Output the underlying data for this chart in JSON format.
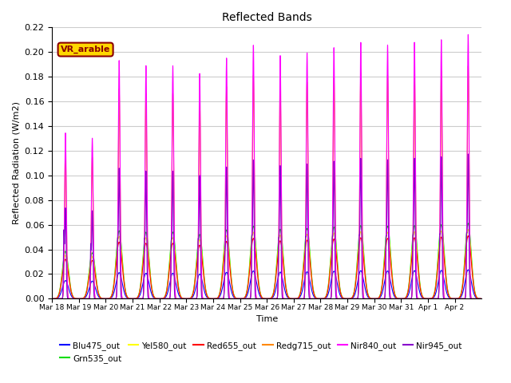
{
  "title": "Reflected Bands",
  "xlabel": "Time",
  "ylabel": "Reflected Radiation (W/m2)",
  "annotation": "VR_arable",
  "annotation_color": "#8B0000",
  "annotation_bg": "#FFD700",
  "ylim": [
    0.0,
    0.22
  ],
  "series": [
    {
      "label": "Blu475_out",
      "color": "#0000FF",
      "peak_scale": 0.023
    },
    {
      "label": "Grn535_out",
      "color": "#00DD00",
      "peak_scale": 0.06
    },
    {
      "label": "Yel580_out",
      "color": "#FFFF00",
      "peak_scale": 0.055
    },
    {
      "label": "Red655_out",
      "color": "#FF0000",
      "peak_scale": 0.05
    },
    {
      "label": "Redg715_out",
      "color": "#FF8800",
      "peak_scale": 0.185
    },
    {
      "label": "Nir840_out",
      "color": "#FF00FF",
      "peak_scale": 0.21
    },
    {
      "label": "Nir945_out",
      "color": "#8800CC",
      "peak_scale": 0.115
    }
  ],
  "bg_color": "#FFFFFF",
  "grid_color": "#CCCCCC",
  "day_peaks_nir840": [
    0.64,
    0.62,
    0.92,
    0.9,
    0.9,
    0.87,
    0.93,
    0.98,
    0.94,
    0.95,
    0.97,
    0.99,
    0.98,
    0.99,
    1.0,
    1.02
  ],
  "day_peaks_nir945_side": [
    0.64,
    0.5,
    0.52,
    0.52,
    0.52,
    0.52,
    0.38,
    0.54,
    0.52,
    0.53,
    0.53,
    0.54,
    0.53,
    0.54,
    0.55,
    0.56
  ],
  "num_days": 16,
  "tick_labels": [
    "Mar 18",
    "Mar 19",
    "Mar 20",
    "Mar 21",
    "Mar 22",
    "Mar 23",
    "Mar 24",
    "Mar 25",
    "Mar 26",
    "Mar 27",
    "Mar 28",
    "Mar 29",
    "Mar 30",
    "Mar 31",
    "Apr 1",
    "Apr 2"
  ]
}
